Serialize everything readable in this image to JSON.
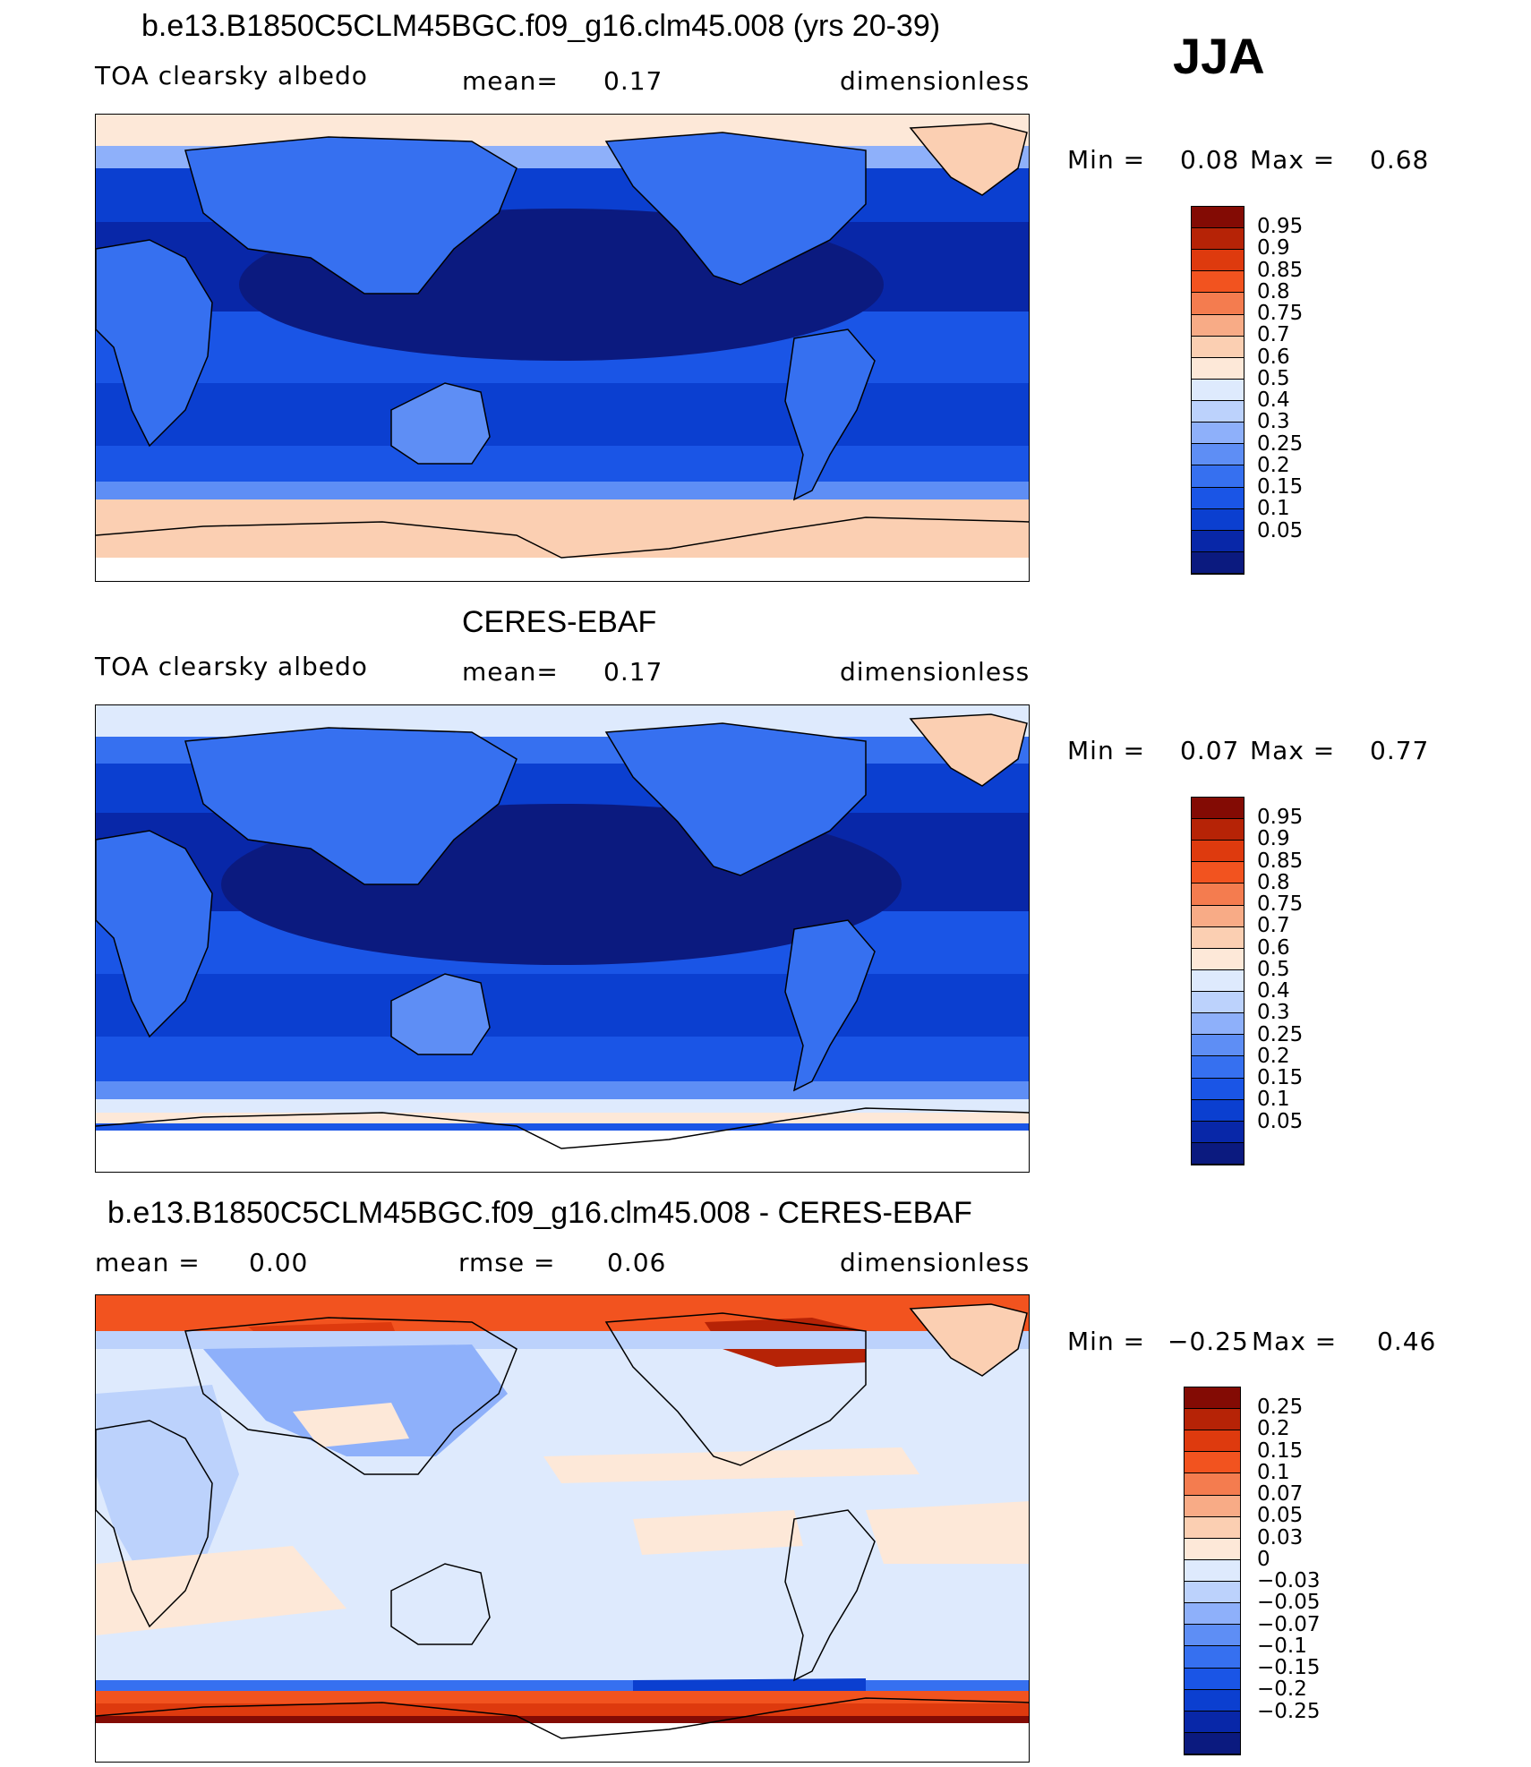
{
  "season": "JJA",
  "colors": {
    "scale_abs": [
      "#0b1a7f",
      "#0827a8",
      "#0b3fd0",
      "#1a55e6",
      "#3670f0",
      "#5e8ef5",
      "#8eb0fa",
      "#bcd2fc",
      "#deeafd",
      "#fde8d8",
      "#fbcfb2",
      "#f8ab86",
      "#f47c4f",
      "#f2531f",
      "#de3a0e",
      "#b62306",
      "#830b04"
    ],
    "scale_diff": [
      "#0b1a7f",
      "#0827a8",
      "#0b3fd0",
      "#1a55e6",
      "#3670f0",
      "#5e8ef5",
      "#8eb0fa",
      "#bcd2fc",
      "#deeafd",
      "#fde8d8",
      "#fbcfb2",
      "#f8ab86",
      "#f47c4f",
      "#f2531f",
      "#de3a0e",
      "#b62306",
      "#830b04"
    ]
  },
  "panels": [
    {
      "title": "b.e13.B1850C5CLM45BGC.f09_g16.clm45.008 (yrs 20-39)",
      "left_label": "TOA clearsky albedo",
      "mid_label": "mean=",
      "mid_value": "0.17",
      "right_label": "dimensionless",
      "min_label": "Min =",
      "min_value": "0.08",
      "max_label": "Max =",
      "max_value": "0.68",
      "levels": [
        "0.95",
        "0.9",
        "0.85",
        "0.8",
        "0.75",
        "0.7",
        "0.6",
        "0.5",
        "0.4",
        "0.3",
        "0.25",
        "0.2",
        "0.15",
        "0.1",
        "0.05"
      ]
    },
    {
      "title": "CERES-EBAF",
      "left_label": "TOA clearsky albedo",
      "mid_label": "mean=",
      "mid_value": "0.17",
      "right_label": "dimensionless",
      "min_label": "Min =",
      "min_value": "0.07",
      "max_label": "Max =",
      "max_value": "0.77",
      "levels": [
        "0.95",
        "0.9",
        "0.85",
        "0.8",
        "0.75",
        "0.7",
        "0.6",
        "0.5",
        "0.4",
        "0.3",
        "0.25",
        "0.2",
        "0.15",
        "0.1",
        "0.05"
      ]
    },
    {
      "title": "b.e13.B1850C5CLM45BGC.f09_g16.clm45.008 - CERES-EBAF",
      "left_label": "mean =",
      "left_value": "0.00",
      "mid_label": "rmse =",
      "mid_value": "0.06",
      "right_label": "dimensionless",
      "min_label": "Min =",
      "min_value": "−0.25",
      "max_label": "Max =",
      "max_value": "0.46",
      "levels": [
        "0.25",
        "0.2",
        "0.15",
        "0.1",
        "0.07",
        "0.05",
        "0.03",
        "0",
        "−0.03",
        "−0.05",
        "−0.07",
        "−0.1",
        "−0.15",
        "−0.2",
        "−0.25"
      ]
    }
  ]
}
